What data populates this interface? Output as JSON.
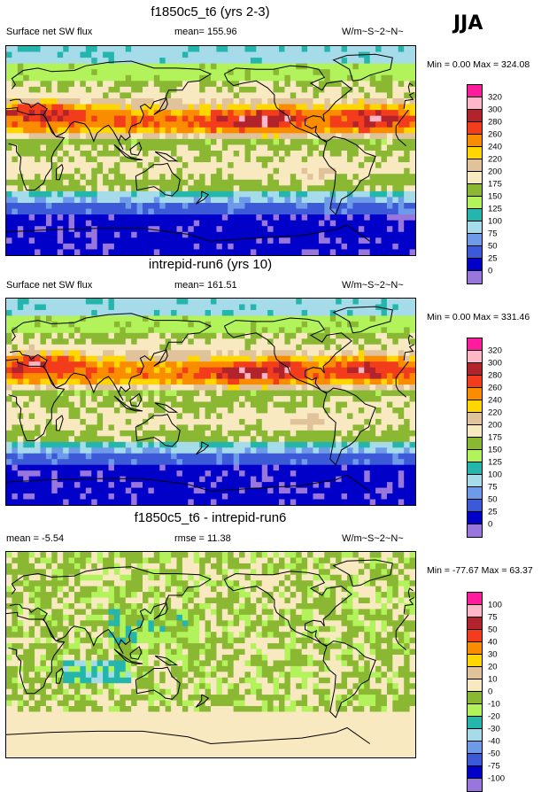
{
  "season": "JJA",
  "panels": [
    {
      "title": "f1850c5_t6 (yrs 2-3)",
      "left": "Surface net SW flux",
      "mid": "mean= 155.96",
      "units": "W/m~S~2~N~",
      "minmax": "Min =   0.00 Max = 324.08",
      "kind": "abs",
      "variant": 0
    },
    {
      "title": "intrepid-run6 (yrs 10)",
      "left": "Surface net SW flux",
      "mid": "mean= 161.51",
      "units": "W/m~S~2~N~",
      "minmax": "Min =   0.00 Max = 331.46",
      "kind": "abs",
      "variant": 1
    },
    {
      "title": "f1850c5_t6 - intrepid-run6",
      "left": "mean =  -5.54",
      "mid": "rmse =  11.38",
      "units": "W/m~S~2~N~",
      "minmax": "Min = -77.67 Max =  63.37",
      "kind": "diff",
      "variant": 2
    }
  ],
  "legend_abs": {
    "labels": [
      "320",
      "300",
      "280",
      "260",
      "240",
      "220",
      "200",
      "175",
      "150",
      "125",
      "100",
      "75",
      "50",
      "25",
      "0"
    ],
    "colors": [
      "#ff1c9c",
      "#ffb6c6",
      "#b2232c",
      "#f33c1c",
      "#fa8c00",
      "#ffd600",
      "#e0c39a",
      "#f9e9c1",
      "#8ab832",
      "#b2f25a",
      "#24b6ac",
      "#a6dcea",
      "#6e9aea",
      "#3c5ad8",
      "#0000c8",
      "#9876dc"
    ]
  },
  "legend_diff": {
    "labels": [
      "100",
      "75",
      "50",
      "40",
      "30",
      "20",
      "10",
      "0",
      "-10",
      "-20",
      "-30",
      "-40",
      "-50",
      "-75",
      "-100"
    ],
    "colors": [
      "#ff1c9c",
      "#ffb6c6",
      "#b2232c",
      "#f33c1c",
      "#fa8c00",
      "#ffd600",
      "#e0c39a",
      "#f9e9c1",
      "#8ab832",
      "#b2f25a",
      "#24b6ac",
      "#a6dcea",
      "#6e9aea",
      "#3c5ad8",
      "#0000c8",
      "#9876dc"
    ]
  }
}
